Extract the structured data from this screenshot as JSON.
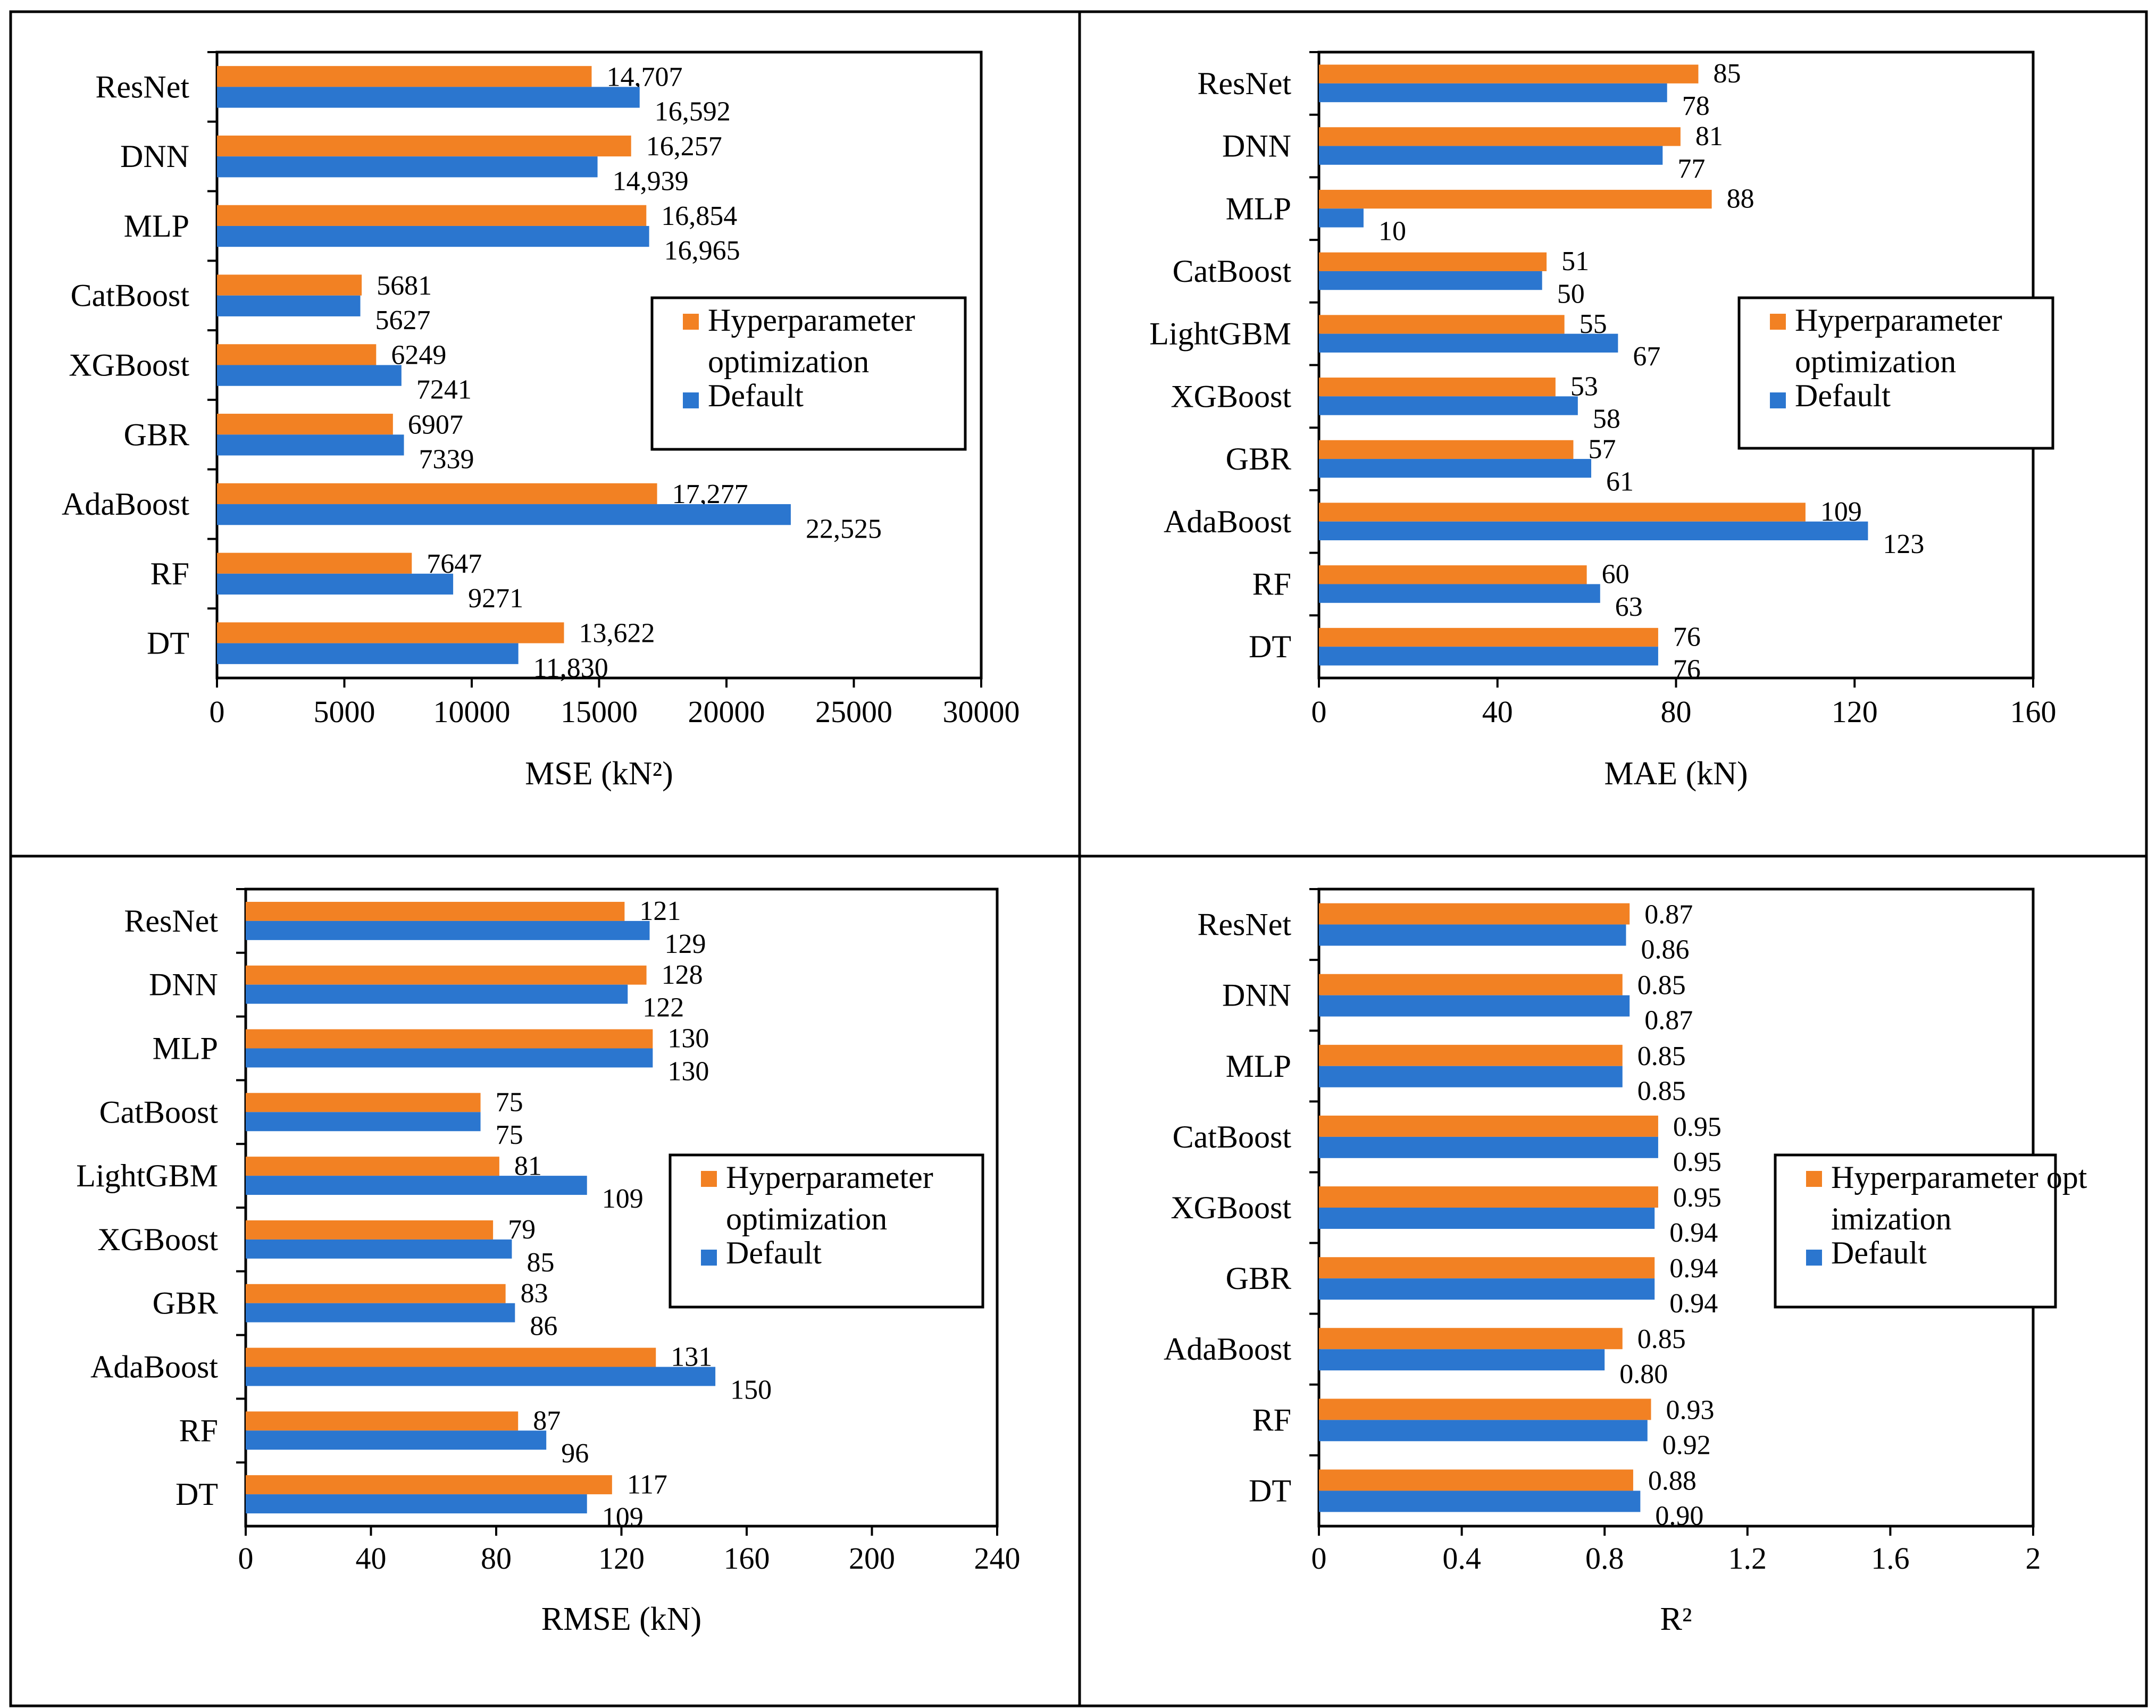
{
  "colors": {
    "optimized": "#F28123",
    "default": "#2B76CF",
    "frame": "#000000"
  },
  "legend": {
    "optimized_label": "Hyperparameter optimization",
    "default_label": "Default"
  },
  "chart_data": [
    {
      "type": "bar",
      "orientation": "horizontal",
      "xlabel": "MSE (kN²)",
      "xlim": [
        0,
        30000
      ],
      "xticks": [
        0,
        5000,
        10000,
        15000,
        20000,
        25000,
        30000
      ],
      "legend_position": "right",
      "categories": [
        "ResNet",
        "DNN",
        "MLP",
        "CatBoost",
        "XGBoost",
        "GBR",
        "AdaBoost",
        "RF",
        "DT"
      ],
      "series": [
        {
          "name": "Hyperparameter optimization",
          "values": [
            14707,
            16257,
            16854,
            5681,
            6249,
            6907,
            17277,
            7647,
            13622
          ],
          "labels": [
            "14,707",
            "16,257",
            "16,854",
            "5681",
            "6249",
            "6907",
            "17,277",
            "7647",
            "13,622"
          ]
        },
        {
          "name": "Default",
          "values": [
            16592,
            14939,
            16965,
            5627,
            7241,
            7339,
            22525,
            9271,
            11830
          ],
          "labels": [
            "16,592",
            "14,939",
            "16,965",
            "5627",
            "7241",
            "7339",
            "22,525",
            "9271",
            "11,830"
          ]
        }
      ]
    },
    {
      "type": "bar",
      "orientation": "horizontal",
      "xlabel": "MAE (kN)",
      "xlim": [
        0,
        160
      ],
      "xticks": [
        0,
        40,
        80,
        120,
        160
      ],
      "legend_position": "right",
      "categories": [
        "ResNet",
        "DNN",
        "MLP",
        "CatBoost",
        "LightGBM",
        "XGBoost",
        "GBR",
        "AdaBoost",
        "RF",
        "DT"
      ],
      "series": [
        {
          "name": "Hyperparameter optimization",
          "values": [
            85,
            81,
            88,
            51,
            55,
            53,
            57,
            109,
            60,
            76
          ],
          "labels": [
            "85",
            "81",
            "88",
            "51",
            "55",
            "53",
            "57",
            "109",
            "60",
            "76"
          ]
        },
        {
          "name": "Default",
          "values": [
            78,
            77,
            10,
            50,
            67,
            58,
            61,
            123,
            63,
            76
          ],
          "labels": [
            "78",
            "77",
            "10",
            "50",
            "67",
            "58",
            "61",
            "123",
            "63",
            "76"
          ]
        }
      ]
    },
    {
      "type": "bar",
      "orientation": "horizontal",
      "xlabel": "RMSE (kN)",
      "xlim": [
        0,
        240
      ],
      "xticks": [
        0,
        40,
        80,
        120,
        160,
        200,
        240
      ],
      "legend_position": "right",
      "categories": [
        "ResNet",
        "DNN",
        "MLP",
        "CatBoost",
        "LightGBM",
        "XGBoost",
        "GBR",
        "AdaBoost",
        "RF",
        "DT"
      ],
      "series": [
        {
          "name": "Hyperparameter optimization",
          "values": [
            121,
            128,
            130,
            75,
            81,
            79,
            83,
            131,
            87,
            117
          ],
          "labels": [
            "121",
            "128",
            "130",
            "75",
            "81",
            "79",
            "83",
            "131",
            "87",
            "117"
          ]
        },
        {
          "name": "Default",
          "values": [
            129,
            122,
            130,
            75,
            109,
            85,
            86,
            150,
            96,
            109
          ],
          "labels": [
            "129",
            "122",
            "130",
            "75",
            "109",
            "85",
            "86",
            "150",
            "96",
            "109"
          ]
        }
      ]
    },
    {
      "type": "bar",
      "orientation": "horizontal",
      "xlabel": "R²",
      "xlim": [
        0,
        2
      ],
      "xticks": [
        0,
        0.4,
        0.8,
        1.2,
        1.6,
        2
      ],
      "legend_position": "right",
      "categories": [
        "ResNet",
        "DNN",
        "MLP",
        "CatBoost",
        "XGBoost",
        "GBR",
        "AdaBoost",
        "RF",
        "DT"
      ],
      "series": [
        {
          "name": "Hyperparameter optimization",
          "values": [
            0.87,
            0.85,
            0.85,
            0.95,
            0.95,
            0.94,
            0.85,
            0.93,
            0.88
          ],
          "labels": [
            "0.87",
            "0.85",
            "0.85",
            "0.95",
            "0.95",
            "0.94",
            "0.85",
            "0.93",
            "0.88"
          ]
        },
        {
          "name": "Default",
          "values": [
            0.86,
            0.87,
            0.85,
            0.95,
            0.94,
            0.94,
            0.8,
            0.92,
            0.9
          ],
          "labels": [
            "0.86",
            "0.87",
            "0.85",
            "0.95",
            "0.94",
            "0.94",
            "0.80",
            "0.92",
            "0.90"
          ]
        }
      ]
    }
  ]
}
